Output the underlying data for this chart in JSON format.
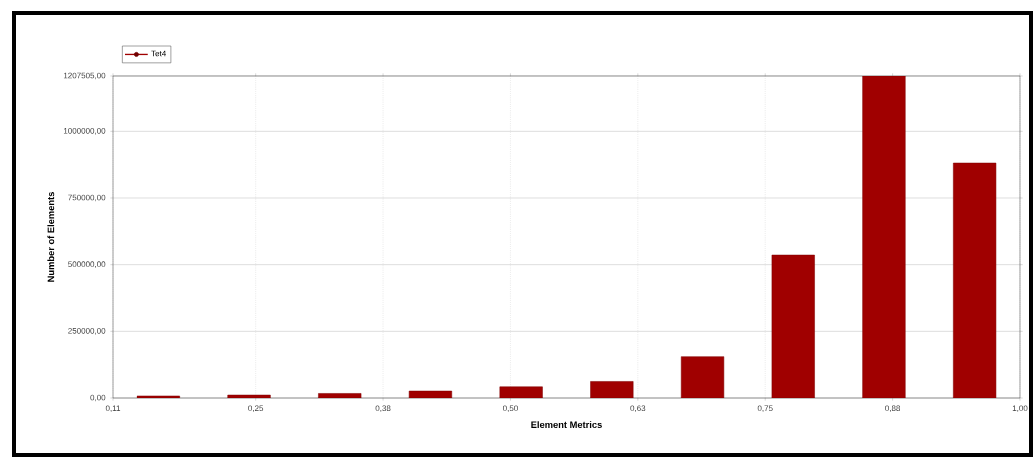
{
  "chart_data": {
    "type": "histogram",
    "xlabel": "Element Metrics",
    "ylabel": "Number of Elements",
    "bins": [
      0.11,
      0.199,
      0.288,
      0.377,
      0.466,
      0.555,
      0.644,
      0.733,
      0.822,
      0.911,
      1.0
    ],
    "series": [
      {
        "name": "Tet4",
        "color": "#a00000",
        "values": [
          7500,
          11000,
          17000,
          26000,
          42000,
          62000,
          155000,
          536000,
          1207505,
          881000
        ]
      }
    ],
    "xlim": [
      0.11,
      1.0
    ],
    "xticks": [
      {
        "value": 0.11,
        "label": "0,11"
      },
      {
        "value": 0.25,
        "label": "0,25"
      },
      {
        "value": 0.375,
        "label": "0,38"
      },
      {
        "value": 0.5,
        "label": "0,50"
      },
      {
        "value": 0.625,
        "label": "0,63"
      },
      {
        "value": 0.75,
        "label": "0,75"
      },
      {
        "value": 0.875,
        "label": "0,88"
      },
      {
        "value": 1.0,
        "label": "1,00"
      }
    ],
    "ylim": [
      0,
      1207505
    ],
    "yticks": [
      {
        "value": 0,
        "label": "0,00"
      },
      {
        "value": 250000,
        "label": "250000,00"
      },
      {
        "value": 500000,
        "label": "500000,00"
      },
      {
        "value": 750000,
        "label": "750000,00"
      },
      {
        "value": 1000000,
        "label": "1000000,00"
      },
      {
        "value": 1207505,
        "label": "1207505,00"
      }
    ],
    "grid": true,
    "legend": "top left"
  }
}
